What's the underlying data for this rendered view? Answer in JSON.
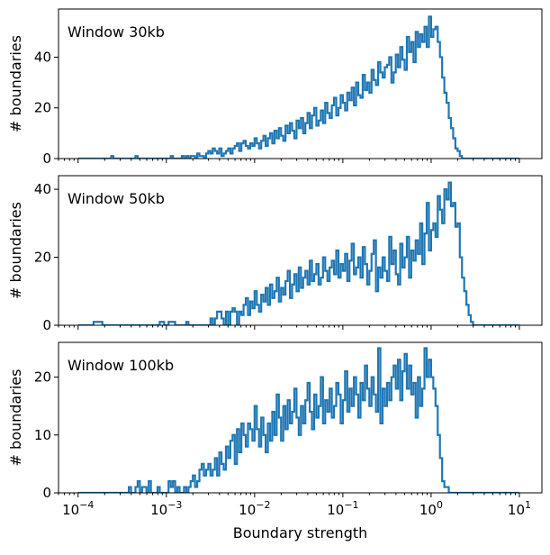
{
  "chart_data": [
    {
      "type": "histogram",
      "panel_label": "Window 30kb",
      "xlabel": "",
      "ylabel": "# boundaries",
      "x_scale": "log",
      "xlim": [
        6e-05,
        18
      ],
      "ylim": [
        0,
        59
      ],
      "yticks": [
        0,
        20,
        40
      ],
      "bin_range": [
        0.0001,
        10
      ],
      "bin_count": 200,
      "counts": [
        0,
        0,
        0,
        0,
        0,
        0,
        0,
        0,
        0,
        0,
        0,
        0,
        0,
        0,
        0,
        1,
        0,
        0,
        0,
        0,
        0,
        0,
        0,
        0,
        0,
        0,
        1,
        0,
        0,
        0,
        0,
        0,
        0,
        0,
        0,
        0,
        0,
        0,
        0,
        0,
        0,
        0,
        1,
        0,
        0,
        0,
        0,
        1,
        0,
        1,
        0,
        1,
        1,
        0,
        2,
        1,
        1,
        0,
        2,
        3,
        2,
        4,
        3,
        2,
        4,
        1,
        2,
        3,
        4,
        2,
        4,
        5,
        6,
        3,
        6,
        7,
        5,
        4,
        6,
        5,
        8,
        6,
        4,
        7,
        9,
        5,
        8,
        10,
        6,
        11,
        8,
        12,
        9,
        7,
        13,
        10,
        14,
        11,
        8,
        15,
        12,
        16,
        10,
        14,
        18,
        12,
        17,
        20,
        13,
        15,
        19,
        14,
        22,
        18,
        16,
        21,
        24,
        17,
        20,
        25,
        22,
        19,
        26,
        23,
        28,
        21,
        30,
        25,
        24,
        33,
        27,
        30,
        26,
        35,
        31,
        29,
        38,
        34,
        32,
        36,
        37,
        40,
        30,
        34,
        41,
        36,
        44,
        39,
        35,
        48,
        42,
        46,
        38,
        50,
        44,
        49,
        46,
        52,
        44,
        56,
        48,
        51,
        52,
        46,
        40,
        32,
        26,
        22,
        16,
        12,
        8,
        4,
        3,
        1,
        0,
        0,
        0,
        0,
        0,
        0,
        0,
        0,
        0,
        0,
        0,
        0,
        0,
        0,
        0,
        0,
        0,
        0,
        0,
        0,
        0,
        0,
        0,
        0,
        0,
        0
      ]
    },
    {
      "type": "histogram",
      "panel_label": "Window 50kb",
      "xlabel": "",
      "ylabel": "# boundaries",
      "x_scale": "log",
      "xlim": [
        6e-05,
        18
      ],
      "ylim": [
        0,
        44
      ],
      "yticks": [
        0,
        20,
        40
      ],
      "bin_range": [
        0.0001,
        10
      ],
      "bin_count": 200,
      "counts": [
        0,
        0,
        0,
        0,
        0,
        0,
        0,
        1,
        1,
        1,
        1,
        0,
        0,
        0,
        0,
        0,
        0,
        0,
        0,
        0,
        0,
        0,
        0,
        0,
        0,
        0,
        0,
        0,
        0,
        0,
        0,
        0,
        0,
        0,
        0,
        0,
        0,
        1,
        1,
        0,
        0,
        1,
        1,
        1,
        0,
        0,
        0,
        0,
        0,
        1,
        0,
        0,
        0,
        0,
        0,
        0,
        0,
        0,
        0,
        0,
        2,
        0,
        2,
        4,
        4,
        2,
        0,
        4,
        0,
        4,
        5,
        4,
        0,
        4,
        3,
        6,
        8,
        3,
        7,
        5,
        10,
        6,
        4,
        9,
        7,
        11,
        6,
        12,
        8,
        10,
        14,
        7,
        11,
        9,
        13,
        16,
        8,
        12,
        15,
        10,
        17,
        11,
        14,
        16,
        12,
        19,
        13,
        15,
        18,
        12,
        14,
        20,
        16,
        13,
        17,
        19,
        15,
        22,
        14,
        18,
        16,
        21,
        13,
        19,
        24,
        15,
        17,
        20,
        14,
        23,
        18,
        12,
        16,
        21,
        25,
        10,
        17,
        14,
        20,
        16,
        13,
        26,
        18,
        22,
        15,
        12,
        24,
        17,
        20,
        26,
        14,
        22,
        19,
        25,
        21,
        30,
        18,
        27,
        36,
        22,
        28,
        30,
        26,
        38,
        34,
        30,
        40,
        37,
        42,
        35,
        36,
        29,
        30,
        20,
        14,
        10,
        6,
        3,
        1,
        0,
        0,
        0,
        0,
        0,
        0,
        0,
        0,
        0,
        0,
        0,
        0,
        0,
        0,
        0,
        0,
        0,
        0,
        0,
        0,
        0
      ]
    },
    {
      "type": "histogram",
      "panel_label": "Window 100kb",
      "xlabel": "Boundary strength",
      "ylabel": "# boundaries",
      "x_scale": "log",
      "xlim": [
        6e-05,
        18
      ],
      "ylim": [
        0,
        26
      ],
      "yticks": [
        0,
        10,
        20
      ],
      "xticks": [
        {
          "value": 0.0001,
          "base": "10",
          "exp": "−4"
        },
        {
          "value": 0.001,
          "base": "10",
          "exp": "−3"
        },
        {
          "value": 0.01,
          "base": "10",
          "exp": "−2"
        },
        {
          "value": 0.1,
          "base": "10",
          "exp": "−1"
        },
        {
          "value": 1,
          "base": "10",
          "exp": "0"
        },
        {
          "value": 10,
          "base": "10",
          "exp": "1"
        }
      ],
      "bin_range": [
        0.0001,
        10
      ],
      "bin_count": 200,
      "counts": [
        0,
        0,
        0,
        0,
        0,
        0,
        0,
        0,
        0,
        0,
        0,
        0,
        0,
        0,
        0,
        0,
        0,
        0,
        0,
        0,
        0,
        0,
        0,
        1,
        0,
        0,
        1,
        2,
        0,
        1,
        1,
        0,
        2,
        0,
        0,
        0,
        1,
        0,
        0,
        0,
        0,
        2,
        1,
        2,
        0,
        1,
        0,
        0,
        1,
        0,
        1,
        2,
        3,
        1,
        2,
        4,
        5,
        3,
        4,
        5,
        3,
        4,
        6,
        3,
        7,
        5,
        4,
        8,
        6,
        9,
        10,
        5,
        11,
        7,
        12,
        10,
        8,
        12,
        11,
        9,
        15,
        11,
        8,
        13,
        10,
        7,
        12,
        9,
        14,
        10,
        17,
        13,
        9,
        15,
        11,
        16,
        12,
        14,
        18,
        13,
        10,
        15,
        12,
        16,
        19,
        14,
        11,
        17,
        13,
        15,
        20,
        12,
        16,
        14,
        18,
        13,
        15,
        19,
        17,
        12,
        16,
        21,
        14,
        18,
        15,
        20,
        17,
        13,
        19,
        16,
        22,
        18,
        15,
        20,
        17,
        14,
        25,
        12,
        18,
        15,
        19,
        16,
        20,
        22,
        18,
        23,
        16,
        21,
        24,
        18,
        22,
        17,
        19,
        13,
        20,
        15,
        18,
        25,
        20,
        23,
        20,
        18,
        15,
        10,
        6,
        2,
        1,
        1,
        0,
        0,
        0,
        0,
        0,
        0,
        0,
        0,
        0,
        0,
        0,
        0,
        0,
        0,
        0,
        0,
        0,
        0,
        0,
        0,
        0,
        0,
        0,
        0,
        0,
        0,
        0,
        0,
        0,
        0,
        0,
        0
      ]
    }
  ],
  "colors": {
    "series": "#1f77b4",
    "axis": "#000000",
    "background": "#ffffff"
  }
}
